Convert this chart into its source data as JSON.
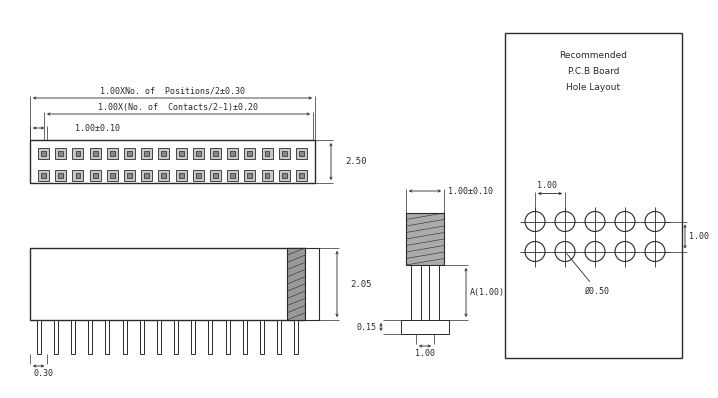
{
  "bg_color": "#ffffff",
  "lc": "#2a2a2a",
  "tc": "#2a2a2a",
  "top_view": {
    "dim1_text": "1.00XNo. of  Positions/2±0.30",
    "dim2_text": "1.00X(No. of  Contacts/2-1)±0.20",
    "dim3_text": "1.00±0.10",
    "side_dim": "2.50"
  },
  "side_view": {
    "side_dim": "2.05",
    "bot_dim": "0.30"
  },
  "front_view": {
    "top_dim": "1.00±0.10",
    "right_dim": "A(1.00)",
    "left_dim": "0.15",
    "bot_dim": "1.00"
  },
  "pcb": {
    "title1": "Recommended",
    "title2": "P.C.B Board",
    "title3": "Hole Layout",
    "dh": "1.00",
    "dv": "1.00",
    "dd": "Ø0.50"
  }
}
